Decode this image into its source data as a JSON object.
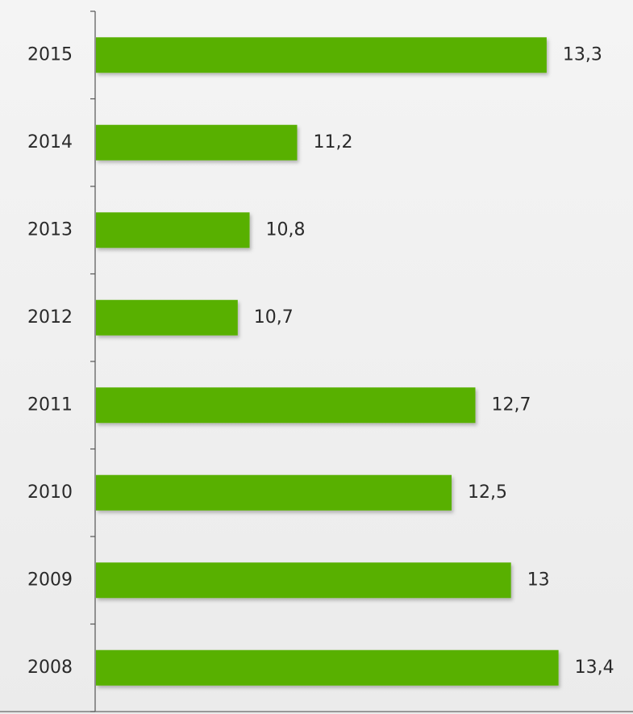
{
  "chart_data": {
    "type": "bar",
    "orientation": "horizontal",
    "categories": [
      "2015",
      "2014",
      "2013",
      "2012",
      "2011",
      "2010",
      "2009",
      "2008"
    ],
    "values": [
      13.3,
      11.2,
      10.8,
      10.7,
      12.7,
      12.5,
      13,
      13.4
    ],
    "value_labels": [
      "13,3",
      "11,2",
      "10,8",
      "10,7",
      "12,7",
      "12,5",
      "13",
      "13,4"
    ],
    "xlim": [
      9.5,
      13.45
    ],
    "grid": false,
    "legend": "none",
    "bar_color": "#58b000"
  }
}
